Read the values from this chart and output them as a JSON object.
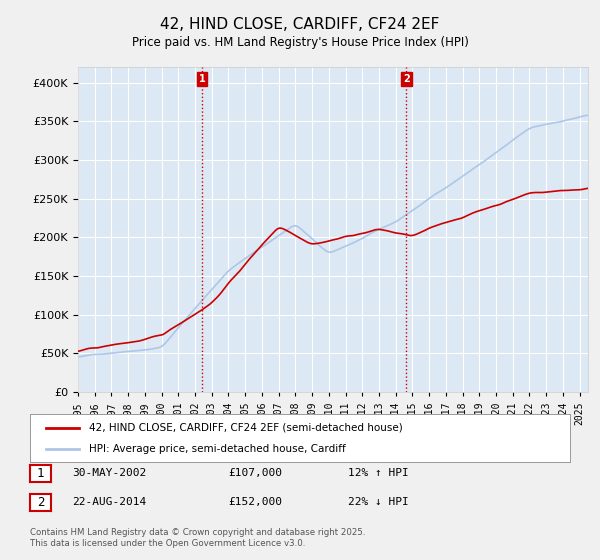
{
  "title": "42, HIND CLOSE, CARDIFF, CF24 2EF",
  "subtitle": "Price paid vs. HM Land Registry's House Price Index (HPI)",
  "ylabel_ticks": [
    "£0",
    "£50K",
    "£100K",
    "£150K",
    "£200K",
    "£250K",
    "£300K",
    "£350K",
    "£400K"
  ],
  "ylim": [
    0,
    420000
  ],
  "xlim_start": 1995.0,
  "xlim_end": 2025.5,
  "hpi_color": "#aec6e8",
  "price_color": "#cc0000",
  "vline_color": "#cc0000",
  "vline_style": ":",
  "background_color": "#dce9f5",
  "plot_bg_color": "#dce9f5",
  "grid_color": "#ffffff",
  "annotation1": {
    "label": "1",
    "date_str": "30-MAY-2002",
    "price": "£107,000",
    "hpi_pct": "12% ↑ HPI",
    "x_year": 2002.41
  },
  "annotation2": {
    "label": "2",
    "date_str": "22-AUG-2014",
    "price": "£152,000",
    "hpi_pct": "22% ↓ HPI",
    "x_year": 2014.64
  },
  "legend_line1": "42, HIND CLOSE, CARDIFF, CF24 2EF (semi-detached house)",
  "legend_line2": "HPI: Average price, semi-detached house, Cardiff",
  "footer": "Contains HM Land Registry data © Crown copyright and database right 2025.\nThis data is licensed under the Open Government Licence v3.0.",
  "xtick_years": [
    1995,
    1996,
    1997,
    1998,
    1999,
    2000,
    2001,
    2002,
    2003,
    2004,
    2005,
    2006,
    2007,
    2008,
    2009,
    2010,
    2011,
    2012,
    2013,
    2014,
    2015,
    2016,
    2017,
    2018,
    2019,
    2020,
    2021,
    2022,
    2023,
    2024,
    2025
  ]
}
